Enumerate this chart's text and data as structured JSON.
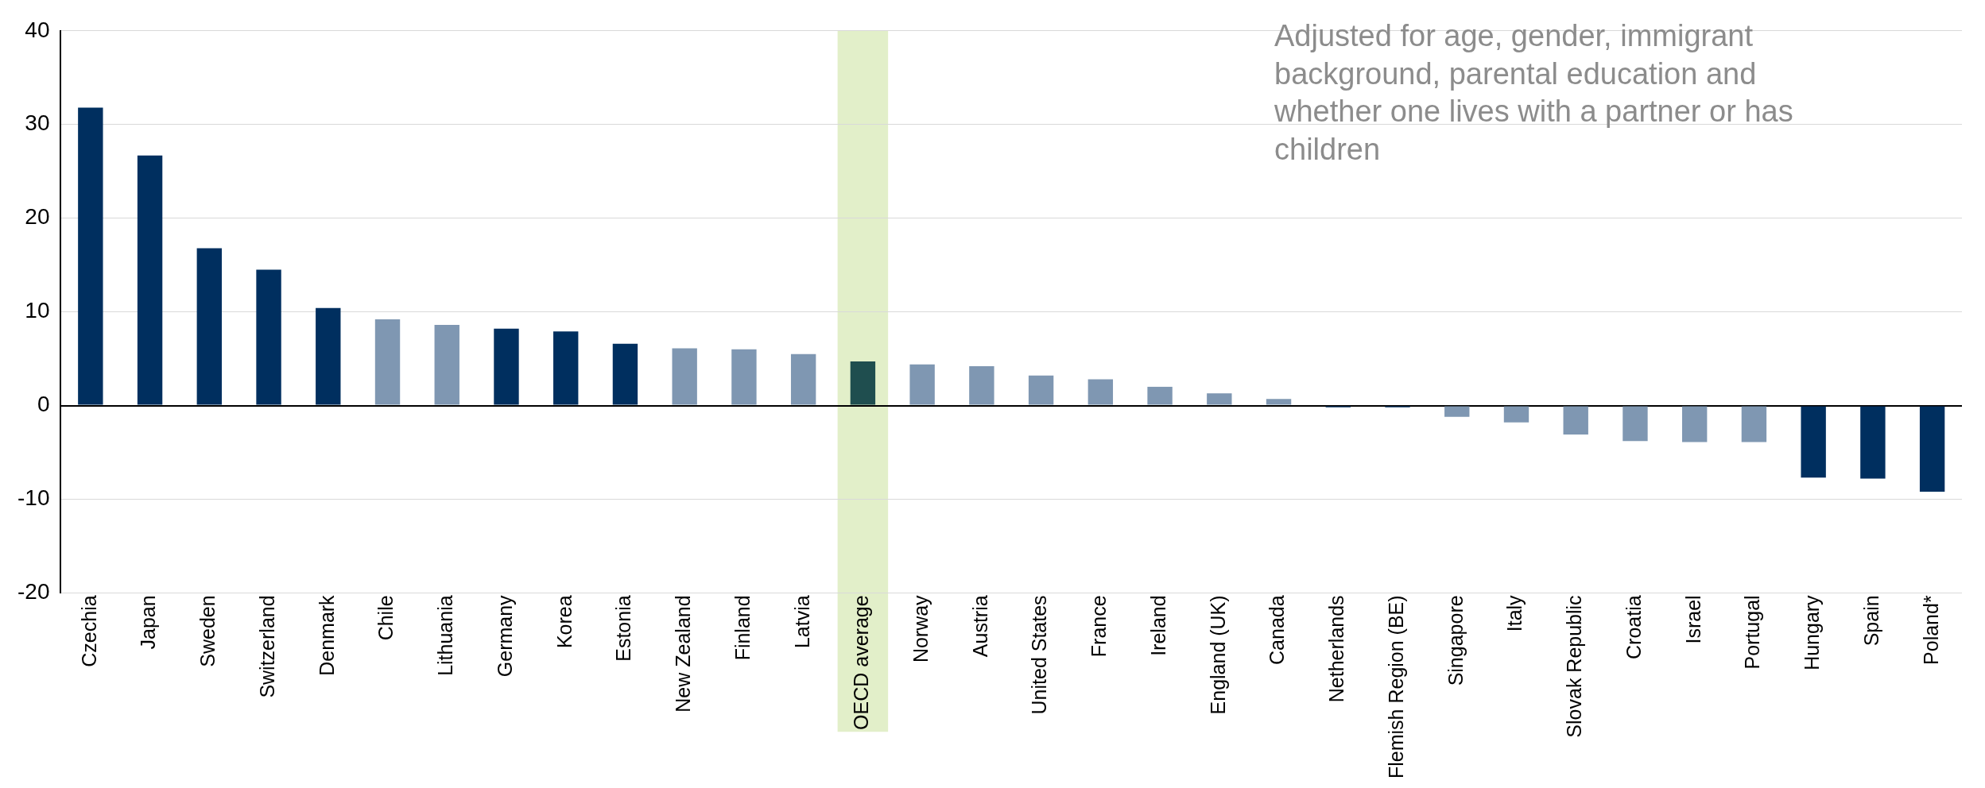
{
  "chart_data": {
    "type": "bar",
    "categories": [
      "Czechia",
      "Japan",
      "Sweden",
      "Switzerland",
      "Denmark",
      "Chile",
      "Lithuania",
      "Germany",
      "Korea",
      "Estonia",
      "New Zealand",
      "Finland",
      "Latvia",
      "OECD average",
      "Norway",
      "Austria",
      "United States",
      "France",
      "Ireland",
      "England (UK)",
      "Canada",
      "Netherlands",
      "Flemish Region (BE)",
      "Singapore",
      "Italy",
      "Slovak Republic",
      "Croatia",
      "Israel",
      "Portugal",
      "Hungary",
      "Spain",
      "Poland*"
    ],
    "values": [
      31.8,
      26.7,
      16.8,
      14.5,
      10.4,
      9.2,
      8.6,
      8.2,
      7.9,
      6.6,
      6.1,
      6.0,
      5.5,
      4.7,
      4.4,
      4.2,
      3.2,
      2.8,
      2.0,
      1.3,
      0.7,
      -0.2,
      -0.2,
      -1.2,
      -1.8,
      -3.1,
      -3.8,
      -3.9,
      -3.9,
      -7.7,
      -7.8,
      -9.2
    ],
    "colors": [
      "#002f5f",
      "#002f5f",
      "#002f5f",
      "#002f5f",
      "#002f5f",
      "#7f97b2",
      "#7f97b2",
      "#002f5f",
      "#002f5f",
      "#002f5f",
      "#7f97b2",
      "#7f97b2",
      "#7f97b2",
      "#1f4e4f",
      "#7f97b2",
      "#7f97b2",
      "#7f97b2",
      "#7f97b2",
      "#7f97b2",
      "#7f97b2",
      "#7f97b2",
      "#002f5f",
      "#002f5f",
      "#7f97b2",
      "#7f97b2",
      "#7f97b2",
      "#7f97b2",
      "#7f97b2",
      "#7f97b2",
      "#002f5f",
      "#002f5f",
      "#002f5f"
    ],
    "ylim": [
      -20,
      40
    ],
    "yticks": [
      -20,
      -10,
      0,
      10,
      20,
      30,
      40
    ],
    "grid": "y",
    "legend": false,
    "bands": [
      {
        "axis": "x",
        "from": "OECD average",
        "to": "OECD average",
        "color": "#e2efc9"
      }
    ],
    "annotations": [
      "Adjusted for age, gender, immigrant background, parental education and whether one lives with a partner or has children"
    ]
  }
}
